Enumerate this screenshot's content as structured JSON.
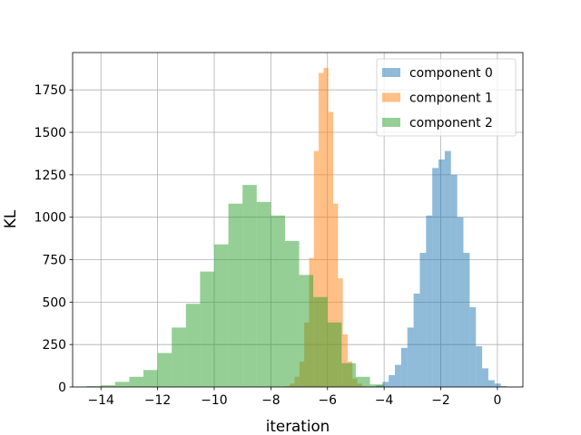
{
  "chart_data": {
    "type": "histogram",
    "title": "",
    "xlabel": "iteration",
    "ylabel": "KL",
    "xlim": [
      -15.0,
      0.9
    ],
    "ylim": [
      0,
      1970
    ],
    "xticks": [
      -14,
      -12,
      -10,
      -8,
      -6,
      -4,
      -2,
      0
    ],
    "yticks": [
      0,
      250,
      500,
      750,
      1000,
      1250,
      1500,
      1750
    ],
    "grid": true,
    "legend": {
      "position": "top-right"
    },
    "alpha": 0.5,
    "series": [
      {
        "name": "component 0",
        "color": "#1f77b4",
        "bin_edges": [
          -4.5,
          -4.28,
          -4.06,
          -3.84,
          -3.62,
          -3.4,
          -3.18,
          -2.96,
          -2.74,
          -2.52,
          -2.3,
          -2.08,
          -1.86,
          -1.64,
          -1.42,
          -1.2,
          -0.98,
          -0.76,
          -0.54,
          -0.32,
          -0.1,
          0.12,
          0.34
        ],
        "counts": [
          2,
          10,
          30,
          70,
          130,
          230,
          350,
          550,
          790,
          1010,
          1290,
          1340,
          1390,
          1250,
          1000,
          790,
          470,
          240,
          110,
          40,
          20,
          5
        ]
      },
      {
        "name": "component 1",
        "color": "#ff7f0e",
        "bin_edges": [
          -7.5,
          -7.33,
          -7.16,
          -6.99,
          -6.82,
          -6.65,
          -6.48,
          -6.31,
          -6.14,
          -5.97,
          -5.8,
          -5.63,
          -5.46,
          -5.29,
          -5.12,
          -4.95,
          -4.78,
          -4.61
        ],
        "counts": [
          5,
          20,
          60,
          150,
          380,
          760,
          1390,
          1850,
          1880,
          1620,
          1080,
          640,
          310,
          150,
          50,
          20,
          5
        ]
      },
      {
        "name": "component 2",
        "color": "#2ca02c",
        "bin_edges": [
          -14.5,
          -14.0,
          -13.5,
          -13.0,
          -12.5,
          -12.0,
          -11.5,
          -11.0,
          -10.5,
          -10.0,
          -9.5,
          -9.0,
          -8.5,
          -8.0,
          -7.5,
          -7.0,
          -6.5,
          -6.0,
          -5.5,
          -5.0,
          -4.5,
          -4.0
        ],
        "counts": [
          5,
          10,
          30,
          60,
          100,
          200,
          350,
          490,
          680,
          840,
          1080,
          1190,
          1090,
          1010,
          860,
          660,
          530,
          380,
          140,
          60,
          15,
          5
        ]
      }
    ]
  }
}
